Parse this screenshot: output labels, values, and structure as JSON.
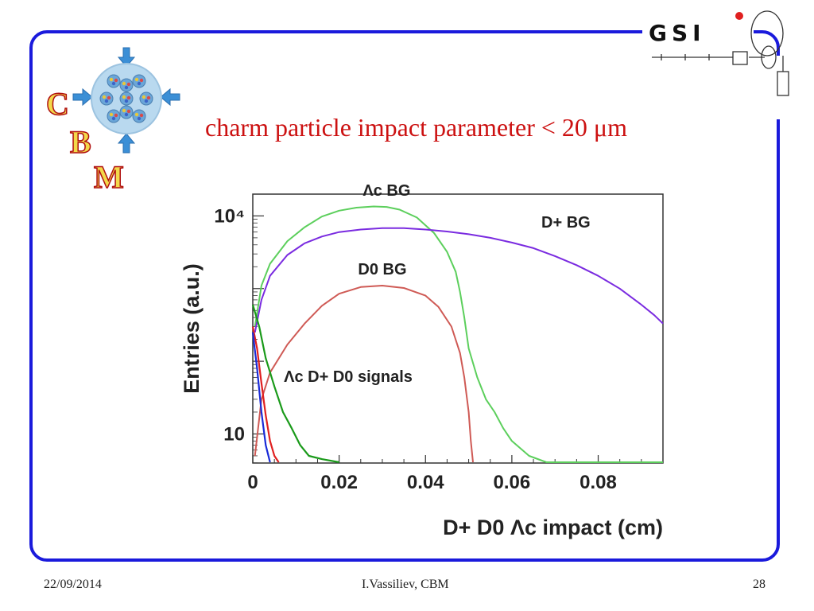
{
  "slide": {
    "title": "charm particle impact parameter < 20 μm",
    "footer_date": "22/09/2014",
    "footer_author": "I.Vassiliev, CBM",
    "page_number": "28",
    "logo_letters": [
      "C",
      "B",
      "M"
    ],
    "gsi_logo_text": "GSI",
    "frame_color": "#1a1adc",
    "title_color": "#cc1111"
  },
  "chart_data": {
    "type": "line",
    "xlabel": "D+ D0 Λc  impact (cm)",
    "ylabel": "Entries (a.u.)",
    "xlim": [
      0,
      0.095
    ],
    "ylim_log10": [
      0.6,
      4.3
    ],
    "log_y": true,
    "x_ticks": [
      {
        "value": 0,
        "label": "0"
      },
      {
        "value": 0.02,
        "label": "0.02"
      },
      {
        "value": 0.04,
        "label": "0.04"
      },
      {
        "value": 0.06,
        "label": "0.06"
      },
      {
        "value": 0.08,
        "label": "0.08"
      }
    ],
    "y_ticks": [
      {
        "value": 10,
        "label": "10"
      },
      {
        "value": 10000,
        "label": "10⁴"
      }
    ],
    "series": [
      {
        "name": "Λc BG",
        "color": "#5ccf5c",
        "x": [
          0.0005,
          0.002,
          0.004,
          0.008,
          0.012,
          0.016,
          0.02,
          0.024,
          0.028,
          0.031,
          0.034,
          0.038,
          0.042,
          0.045,
          0.047,
          0.048,
          0.049,
          0.05,
          0.052,
          0.054,
          0.056,
          0.058,
          0.06,
          0.064,
          0.068,
          0.095
        ],
        "y": [
          300,
          1100,
          2200,
          4500,
          7000,
          9800,
          11800,
          13000,
          13500,
          13300,
          12200,
          9500,
          5800,
          3200,
          1700,
          900,
          400,
          150,
          60,
          30,
          20,
          12,
          8,
          5,
          4,
          4
        ]
      },
      {
        "name": "D+ BG",
        "color": "#7a2be0",
        "x": [
          0.0005,
          0.002,
          0.004,
          0.008,
          0.012,
          0.016,
          0.02,
          0.025,
          0.03,
          0.035,
          0.04,
          0.045,
          0.05,
          0.055,
          0.06,
          0.065,
          0.07,
          0.075,
          0.08,
          0.085,
          0.09,
          0.093,
          0.095
        ],
        "y": [
          250,
          700,
          1500,
          2900,
          4200,
          5200,
          6000,
          6500,
          6800,
          6800,
          6500,
          6100,
          5600,
          5000,
          4300,
          3600,
          2800,
          2100,
          1500,
          1000,
          600,
          430,
          330
        ]
      },
      {
        "name": "D0 BG",
        "color": "#cf5a55",
        "x": [
          0.0005,
          0.002,
          0.004,
          0.008,
          0.012,
          0.016,
          0.02,
          0.025,
          0.03,
          0.035,
          0.04,
          0.043,
          0.046,
          0.048,
          0.049,
          0.05,
          0.0505,
          0.051
        ],
        "y": [
          5,
          30,
          70,
          170,
          330,
          580,
          850,
          1050,
          1100,
          1020,
          800,
          560,
          300,
          130,
          60,
          20,
          8,
          4
        ]
      },
      {
        "name": "Λc signal",
        "color": "#1a9a1a",
        "x": [
          0,
          0.0015,
          0.003,
          0.005,
          0.007,
          0.009,
          0.011,
          0.013,
          0.016,
          0.02
        ],
        "y": [
          600,
          300,
          110,
          45,
          20,
          12,
          7,
          5,
          4.5,
          4
        ]
      },
      {
        "name": "D+ signal",
        "color": "#e02020",
        "x": [
          0,
          0.001,
          0.002,
          0.003,
          0.004,
          0.005,
          0.006
        ],
        "y": [
          300,
          150,
          50,
          18,
          8,
          5,
          4
        ]
      },
      {
        "name": "D0 signal",
        "color": "#1a2bd8",
        "x": [
          0,
          0.001,
          0.002,
          0.003,
          0.004
        ],
        "y": [
          250,
          80,
          20,
          7,
          4
        ]
      }
    ],
    "annotations": [
      {
        "text": "Λc BG",
        "series": 0
      },
      {
        "text": "D+ BG",
        "series": 1
      },
      {
        "text": "D0 BG",
        "series": 2
      },
      {
        "text": "Λc D+ D0 signals",
        "series": 3
      }
    ],
    "grid": false,
    "legend": "none"
  }
}
